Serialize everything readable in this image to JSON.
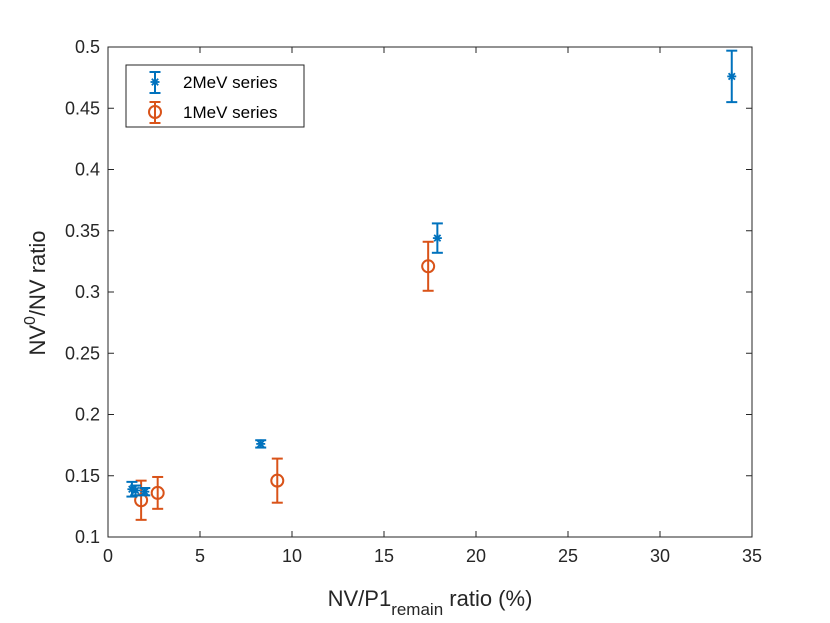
{
  "chart_data": {
    "type": "scatter",
    "title": "",
    "xlabel": {
      "main": "NV/P1",
      "sub": "remain",
      "suffix": " ratio (%)"
    },
    "ylabel": {
      "main": "NV",
      "sup": "0",
      "suffix": "/NV ratio"
    },
    "xlim": [
      0,
      35
    ],
    "ylim": [
      0.1,
      0.5
    ],
    "xticks": [
      0,
      5,
      10,
      15,
      20,
      25,
      30,
      35
    ],
    "yticks": [
      0.1,
      0.15,
      0.2,
      0.25,
      0.3,
      0.35,
      0.4,
      0.45,
      0.5
    ],
    "legend_position": "top-left",
    "grid": false,
    "series": [
      {
        "name": "2MeV series",
        "color": "#0072BD",
        "marker": "asterisk",
        "x": [
          1.3,
          1.5,
          2.0,
          8.3,
          17.9,
          33.9
        ],
        "y": [
          0.139,
          0.138,
          0.137,
          0.176,
          0.344,
          0.476
        ],
        "err": [
          0.006,
          0.004,
          0.003,
          0.003,
          0.012,
          0.021
        ]
      },
      {
        "name": "1MeV series",
        "color": "#D95319",
        "marker": "circle",
        "x": [
          1.8,
          2.7,
          9.2,
          17.4
        ],
        "y": [
          0.13,
          0.136,
          0.146,
          0.321
        ],
        "err": [
          0.016,
          0.013,
          0.018,
          0.02
        ]
      }
    ]
  }
}
